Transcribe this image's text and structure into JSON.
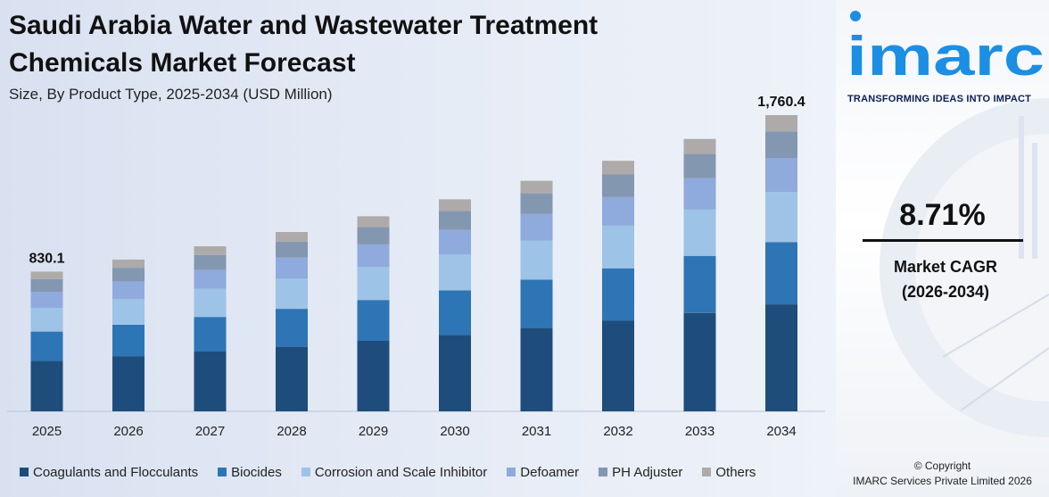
{
  "chart_data": {
    "type": "bar",
    "stacked": true,
    "title": "Saudi Arabia Water and Wastewater Treatment\nChemicals Market Forecast",
    "subtitle": "Size, By Product Type, 2025-2034 (USD Million)",
    "categories": [
      "2025",
      "2026",
      "2027",
      "2028",
      "2029",
      "2030",
      "2031",
      "2032",
      "2033",
      "2034"
    ],
    "totals": [
      830.1,
      902,
      981,
      1066,
      1159,
      1260,
      1370,
      1489,
      1619,
      1760.4
    ],
    "total_labels": [
      {
        "index": 0,
        "text": "830.1"
      },
      {
        "index": 9,
        "text": "1,760.4"
      }
    ],
    "series": [
      {
        "name": "Coagulants and Flocculants",
        "color": "#1e4d7b",
        "values": [
          300,
          326,
          355,
          385,
          419,
          455,
          495,
          538,
          585,
          636
        ]
      },
      {
        "name": "Biocides",
        "color": "#2e75b6",
        "values": [
          174,
          189,
          206,
          224,
          243,
          264,
          287,
          312,
          339,
          369
        ]
      },
      {
        "name": "Corrosion and Scale Inhibitor",
        "color": "#9dc3e6",
        "values": [
          141,
          153,
          167,
          181,
          197,
          214,
          233,
          253,
          275,
          299
        ]
      },
      {
        "name": "Defoamer",
        "color": "#8faadc",
        "values": [
          95,
          104,
          113,
          123,
          133,
          145,
          158,
          171,
          186,
          202
        ]
      },
      {
        "name": "PH Adjuster",
        "color": "#8497b0",
        "values": [
          75,
          81,
          88,
          96,
          104,
          113,
          123,
          134,
          146,
          158
        ]
      },
      {
        "name": "Others",
        "color": "#aeaaaa",
        "values": [
          45.1,
          49,
          52,
          57,
          63,
          69,
          74,
          81,
          88,
          96.4
        ]
      }
    ],
    "ylim": [
      0,
      1760.4
    ],
    "grid": false,
    "legend_position": "bottom"
  },
  "brand": {
    "logo_text": "imarc",
    "tagline": "TRANSFORMING IDEAS INTO IMPACT",
    "logo_color": "#1a8fe3"
  },
  "cagr": {
    "value": "8.71%",
    "label": "Market CAGR\n(2026-2034)"
  },
  "copyright": {
    "line1": "© Copyright",
    "line2": "IMARC Services Private Limited 2026"
  }
}
